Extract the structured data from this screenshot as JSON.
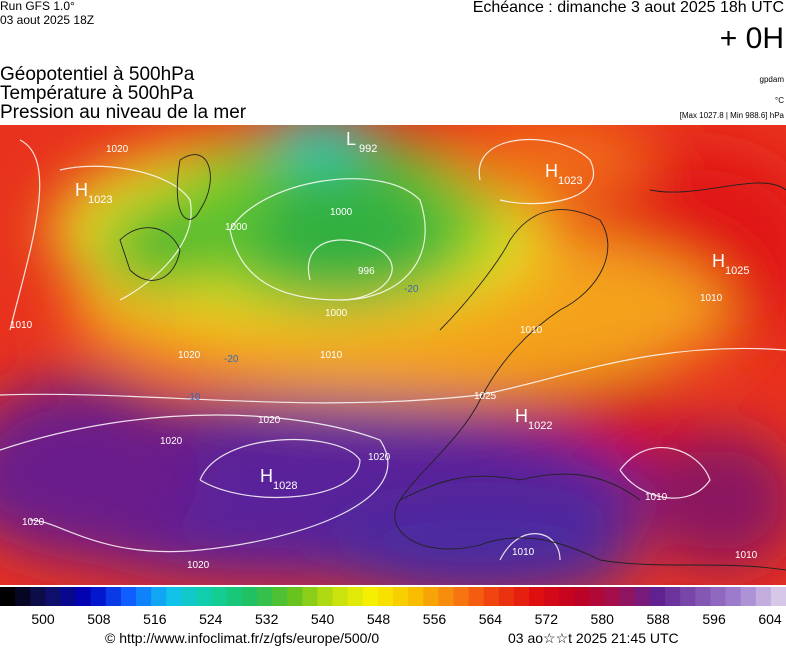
{
  "header": {
    "run": "Run GFS 1.0°",
    "run_date": "03 aout 2025 18Z",
    "echeance": "Echéance : dimanche 3 aout 2025 18h UTC",
    "lead": "+ 0H"
  },
  "layers": [
    "Géopotentiel à 500hPa",
    "Température à 500hPa",
    "Pression au niveau de la mer"
  ],
  "units": {
    "geopotential": "gpdam",
    "temperature": "°C",
    "pressure": "[Max 1027.8 | Min 988.6] hPa"
  },
  "centers": [
    {
      "symbol": "H",
      "value": "1023"
    },
    {
      "symbol": "L",
      "value": "992"
    },
    {
      "symbol": "H",
      "value": "1023"
    },
    {
      "symbol": "H",
      "value": "1025"
    },
    {
      "symbol": "H",
      "value": "1022"
    },
    {
      "symbol": "H",
      "value": "1028"
    }
  ],
  "isobar_labels": [
    "1020",
    "1000",
    "1000",
    "1000",
    "996",
    "1010",
    "1020",
    "1020",
    "1020",
    "1020",
    "1020",
    "1020",
    "1010",
    "1010",
    "1010",
    "1010",
    "1010",
    "1010",
    "1025",
    "-20",
    "-10",
    "-20"
  ],
  "colorbar": {
    "ticks": [
      500,
      508,
      516,
      524,
      532,
      540,
      548,
      556,
      564,
      572,
      580,
      588,
      596,
      604
    ]
  },
  "footer": {
    "url": "© http://www.infoclimat.fr/z/gfs/europe/500/0",
    "time": "03 ao☆☆t 2025 21:45 UTC"
  }
}
